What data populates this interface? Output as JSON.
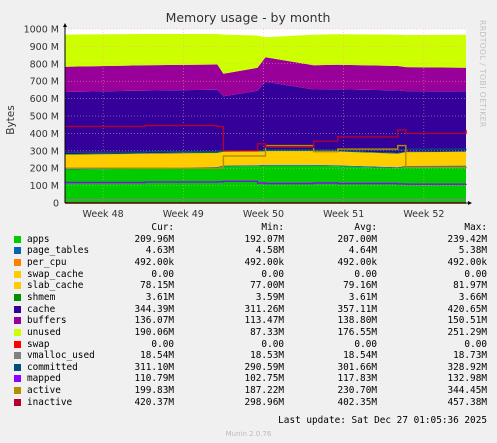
{
  "title": "Memory usage - by month",
  "rrd_credit": "RRDTOOL / TOBI OETIKER",
  "footer_update": "Last update: Sat Dec 27 01:05:36 2025",
  "footer_version": "Munin 2.0.76",
  "legend_headers": {
    "cur": "Cur:",
    "min": "Min:",
    "avg": "Avg:",
    "max": "Max:"
  },
  "legend": [
    {
      "name": "apps",
      "color": "#00cc00",
      "cur": "209.96M",
      "min": "192.07M",
      "avg": "207.00M",
      "max": "239.42M"
    },
    {
      "name": "page_tables",
      "color": "#0066b3",
      "cur": "4.63M",
      "min": "4.58M",
      "avg": "4.64M",
      "max": "5.38M"
    },
    {
      "name": "per_cpu",
      "color": "#ff8000",
      "cur": "492.00k",
      "min": "492.00k",
      "avg": "492.00k",
      "max": "492.00k"
    },
    {
      "name": "swap_cache",
      "color": "#ffcc00",
      "cur": "0.00",
      "min": "0.00",
      "avg": "0.00",
      "max": "0.00"
    },
    {
      "name": "slab_cache",
      "color": "#ffcc00",
      "cur": "78.15M",
      "min": "77.00M",
      "avg": "79.16M",
      "max": "81.97M"
    },
    {
      "name": "shmem",
      "color": "#008f00",
      "cur": "3.61M",
      "min": "3.59M",
      "avg": "3.61M",
      "max": "3.66M"
    },
    {
      "name": "cache",
      "color": "#330099",
      "cur": "344.39M",
      "min": "311.26M",
      "avg": "357.11M",
      "max": "420.65M"
    },
    {
      "name": "buffers",
      "color": "#990099",
      "cur": "136.07M",
      "min": "113.47M",
      "avg": "138.80M",
      "max": "150.51M"
    },
    {
      "name": "unused",
      "color": "#ccff00",
      "cur": "190.06M",
      "min": "87.33M",
      "avg": "176.55M",
      "max": "251.29M"
    },
    {
      "name": "swap",
      "color": "#ff0000",
      "cur": "0.00",
      "min": "0.00",
      "avg": "0.00",
      "max": "0.00"
    },
    {
      "name": "vmalloc_used",
      "color": "#808080",
      "cur": "18.54M",
      "min": "18.53M",
      "avg": "18.54M",
      "max": "18.73M"
    },
    {
      "name": "committed",
      "color": "#004d80",
      "cur": "311.10M",
      "min": "290.59M",
      "avg": "301.66M",
      "max": "328.92M"
    },
    {
      "name": "mapped",
      "color": "#8f00ff",
      "cur": "110.79M",
      "min": "102.75M",
      "avg": "117.83M",
      "max": "132.98M"
    },
    {
      "name": "active",
      "color": "#b38f00",
      "cur": "199.83M",
      "min": "187.22M",
      "avg": "230.70M",
      "max": "344.45M"
    },
    {
      "name": "inactive",
      "color": "#b3002e",
      "cur": "420.37M",
      "min": "298.96M",
      "avg": "402.35M",
      "max": "457.38M"
    }
  ],
  "chart_data": {
    "type": "area",
    "title": "Memory usage - by month",
    "ylabel": "Bytes",
    "xlabel": "",
    "ylim": [
      0,
      1000
    ],
    "y_unit": "M",
    "y_ticks": [
      0,
      100,
      200,
      300,
      400,
      500,
      600,
      700,
      800,
      900,
      1000
    ],
    "y_tick_labels": [
      "0",
      "100 M",
      "200 M",
      "300 M",
      "400 M",
      "500 M",
      "600 M",
      "700 M",
      "800 M",
      "900 M",
      "1000 M"
    ],
    "x_ticks": [
      {
        "label": "Week 48",
        "pos": 0.095
      },
      {
        "label": "Week 49",
        "pos": 0.295
      },
      {
        "label": "Week 50",
        "pos": 0.495
      },
      {
        "label": "Week 51",
        "pos": 0.695
      },
      {
        "label": "Week 52",
        "pos": 0.895
      }
    ],
    "grid": true,
    "x": [
      0,
      0.2,
      0.38,
      0.395,
      0.48,
      0.5,
      0.62,
      0.68,
      0.83,
      0.85,
      1.0
    ],
    "stacked_series": [
      {
        "name": "apps",
        "color": "#00cc00",
        "values": [
          192,
          197,
          202,
          210,
          212,
          214,
          214,
          211,
          200,
          208,
          210
        ]
      },
      {
        "name": "page_tables",
        "color": "#0066b3",
        "values": [
          5,
          5,
          5,
          5,
          5,
          5,
          5,
          5,
          5,
          5,
          5
        ]
      },
      {
        "name": "per_cpu",
        "color": "#ff8000",
        "values": [
          0.5,
          0.5,
          0.5,
          0.5,
          0.5,
          0.5,
          0.5,
          0.5,
          0.5,
          0.5,
          0.5
        ]
      },
      {
        "name": "swap_cache",
        "color": "#ffcc00",
        "values": [
          0,
          0,
          0,
          0,
          0,
          0,
          0,
          0,
          0,
          0,
          0
        ]
      },
      {
        "name": "slab_cache",
        "color": "#ffcc00",
        "values": [
          80,
          80,
          80,
          79,
          79,
          79,
          79,
          79,
          78,
          78,
          78
        ]
      },
      {
        "name": "shmem",
        "color": "#008f00",
        "values": [
          3.6,
          3.6,
          3.6,
          3.6,
          3.6,
          3.6,
          3.6,
          3.6,
          3.6,
          3.6,
          3.6
        ]
      },
      {
        "name": "cache",
        "color": "#330099",
        "values": [
          357,
          360,
          360,
          315,
          345,
          395,
          350,
          355,
          360,
          348,
          344
        ]
      },
      {
        "name": "buffers",
        "color": "#990099",
        "values": [
          145,
          145,
          145,
          130,
          132,
          140,
          140,
          140,
          140,
          138,
          136
        ]
      },
      {
        "name": "unused",
        "color": "#ccff00",
        "values": [
          185,
          180,
          175,
          225,
          185,
          115,
          175,
          176,
          180,
          184,
          190
        ]
      }
    ],
    "line_series": [
      {
        "name": "swap",
        "color": "#ff0000",
        "values": [
          0,
          0,
          0,
          0,
          0,
          0,
          0,
          0,
          0,
          0,
          0
        ]
      },
      {
        "name": "vmalloc_used",
        "color": "#808080",
        "values": [
          18.5,
          18.5,
          18.5,
          18.5,
          18.5,
          18.5,
          18.5,
          18.5,
          18.5,
          18.5,
          18.5
        ]
      },
      {
        "name": "committed",
        "color": "#004d80",
        "values": [
          292,
          295,
          300,
          300,
          302,
          305,
          305,
          305,
          305,
          310,
          311
        ]
      },
      {
        "name": "mapped",
        "color": "#8f00ff",
        "values": [
          118,
          120,
          122,
          125,
          115,
          112,
          115,
          112,
          110,
          108,
          110
        ]
      },
      {
        "name": "active",
        "color": "#b38f00",
        "values": [
          200,
          200,
          200,
          270,
          270,
          330,
          295,
          310,
          330,
          205,
          200
        ]
      },
      {
        "name": "inactive",
        "color": "#b3002e",
        "values": [
          440,
          445,
          440,
          300,
          340,
          320,
          355,
          380,
          420,
          400,
          420
        ]
      }
    ]
  }
}
